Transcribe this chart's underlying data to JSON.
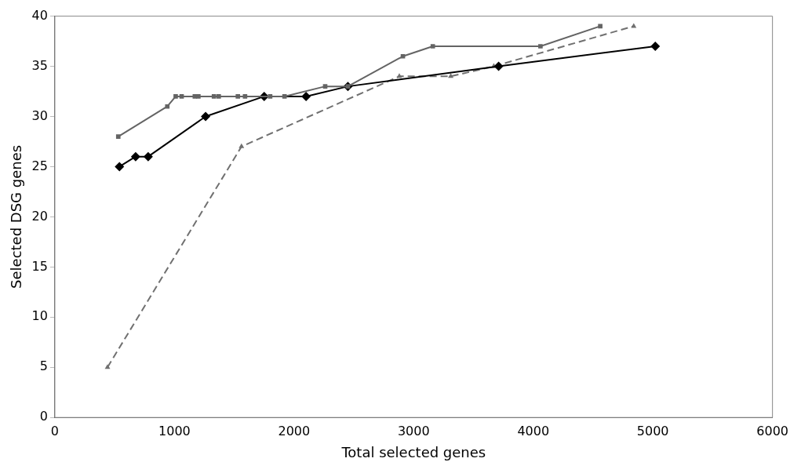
{
  "chart_data": {
    "type": "line",
    "xlabel": "Total selected genes",
    "ylabel": "Selected DSG genes",
    "xlim": [
      0,
      6000
    ],
    "xticks": [
      0,
      1000,
      2000,
      3000,
      4000,
      5000,
      6000
    ],
    "ylim": [
      0,
      40
    ],
    "yticks": [
      0,
      5,
      10,
      15,
      20,
      25,
      30,
      35,
      40
    ],
    "grid": false,
    "legend": false,
    "series": [
      {
        "color": "#646464",
        "marker": "square",
        "line_style": "solid",
        "x": [
          530,
          940,
          1010,
          1060,
          1170,
          1200,
          1330,
          1370,
          1530,
          1590,
          1800,
          1920,
          2260,
          2450,
          2910,
          3160,
          4060,
          4560
        ],
        "values": [
          28,
          31,
          32,
          32,
          32,
          32,
          32,
          32,
          32,
          32,
          32,
          32,
          33,
          33,
          36,
          37,
          37,
          39
        ]
      },
      {
        "color": "#000000",
        "marker": "diamond",
        "line_style": "solid",
        "x": [
          540,
          675,
          780,
          1260,
          1750,
          2100,
          2450,
          3710,
          5020
        ],
        "values": [
          25,
          26,
          26,
          30,
          32,
          32,
          33,
          35,
          37
        ]
      },
      {
        "color": "#707070",
        "marker": "triangle",
        "line_style": "dashed",
        "x": [
          440,
          1560,
          2880,
          3310,
          3670,
          4840
        ],
        "values": [
          5,
          27,
          34,
          34,
          35,
          39
        ]
      }
    ]
  }
}
